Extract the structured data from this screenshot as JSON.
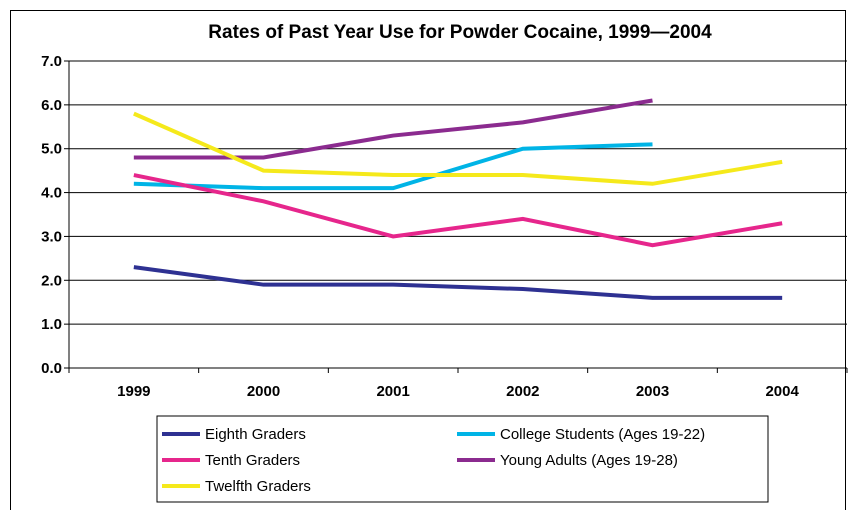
{
  "chart_data": {
    "type": "line",
    "title": "Rates of Past Year Use for Powder Cocaine, 1999—2004",
    "xlabel": "",
    "ylabel": "",
    "categories": [
      "1999",
      "2000",
      "2001",
      "2002",
      "2003",
      "2004"
    ],
    "ylim": [
      0,
      7
    ],
    "yticks": [
      "0.0",
      "1.0",
      "2.0",
      "3.0",
      "4.0",
      "5.0",
      "6.0",
      "7.0"
    ],
    "grid": true,
    "legend_position": "bottom",
    "series": [
      {
        "name": "Eighth Graders",
        "color": "#2e3192",
        "values": [
          2.3,
          1.9,
          1.9,
          1.8,
          1.6,
          1.6
        ]
      },
      {
        "name": "College Students (Ages 19-22)",
        "color": "#00b4e6",
        "values": [
          4.2,
          4.1,
          4.1,
          5.0,
          5.1,
          null
        ]
      },
      {
        "name": "Tenth Graders",
        "color": "#e6268c",
        "values": [
          4.4,
          3.8,
          3.0,
          3.4,
          2.8,
          3.3
        ]
      },
      {
        "name": "Young Adults (Ages 19-28)",
        "color": "#8b2b8f",
        "values": [
          4.8,
          4.8,
          5.3,
          5.6,
          6.1,
          null
        ]
      },
      {
        "name": "Twelfth Graders",
        "color": "#f5e91b",
        "values": [
          5.8,
          4.5,
          4.4,
          4.4,
          4.2,
          4.7
        ]
      }
    ]
  }
}
